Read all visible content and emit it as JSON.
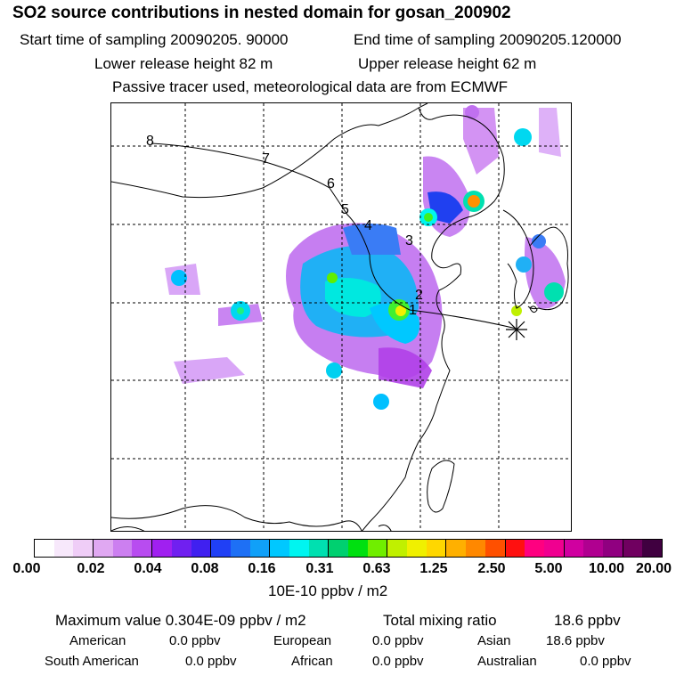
{
  "header": {
    "title": "SO2 source contributions in nested domain for gosan_200902",
    "start_time": "Start time of sampling 20090205. 90000",
    "end_time": "End time of sampling 20090205.120000",
    "lower_height": "Lower release height   82 m",
    "upper_height": "Upper release height   62 m",
    "tracer_note": "Passive tracer used, meteorological data are from ECMWF"
  },
  "map": {
    "track_labels": [
      "1",
      "2",
      "3",
      "4",
      "5",
      "6",
      "7",
      "8"
    ],
    "receptor_symbol": "gosan-receptor"
  },
  "colorbar": {
    "colors": [
      "#ffffff",
      "#f7e8fb",
      "#efcdf7",
      "#e0a8f2",
      "#cc7ff0",
      "#b84cf0",
      "#a020f0",
      "#7020f0",
      "#4020f0",
      "#2040f5",
      "#1e70f5",
      "#10a0f8",
      "#00c8ff",
      "#00f5f0",
      "#00e0b0",
      "#00d070",
      "#00e010",
      "#70ee00",
      "#c0f000",
      "#f0f000",
      "#ffd700",
      "#ffb000",
      "#ff8800",
      "#ff5000",
      "#ff1010",
      "#ff0080",
      "#f00090",
      "#d000a0",
      "#b00090",
      "#900080",
      "#700060",
      "#400040"
    ],
    "tick_labels": [
      "0.00",
      "0.02",
      "0.04",
      "0.08",
      "0.16",
      "0.31",
      "0.63",
      "1.25",
      "2.50",
      "5.00",
      "10.00",
      "20.00"
    ],
    "unit": "10E-10 ppbv / m2"
  },
  "footer": {
    "max_value": "Maximum value  0.304E-09 ppbv / m2",
    "total_label": "Total mixing ratio",
    "total_value": "18.6 ppbv",
    "american_label": "American",
    "american_value": "0.0 ppbv",
    "european_label": "European",
    "european_value": "0.0 ppbv",
    "asian_label": "Asian",
    "asian_value": "18.6 ppbv",
    "south_american_label": "South American",
    "south_american_value": "0.0 ppbv",
    "african_label": "African",
    "african_value": "0.0 ppbv",
    "australian_label": "Australian",
    "australian_value": "0.0 ppbv"
  }
}
